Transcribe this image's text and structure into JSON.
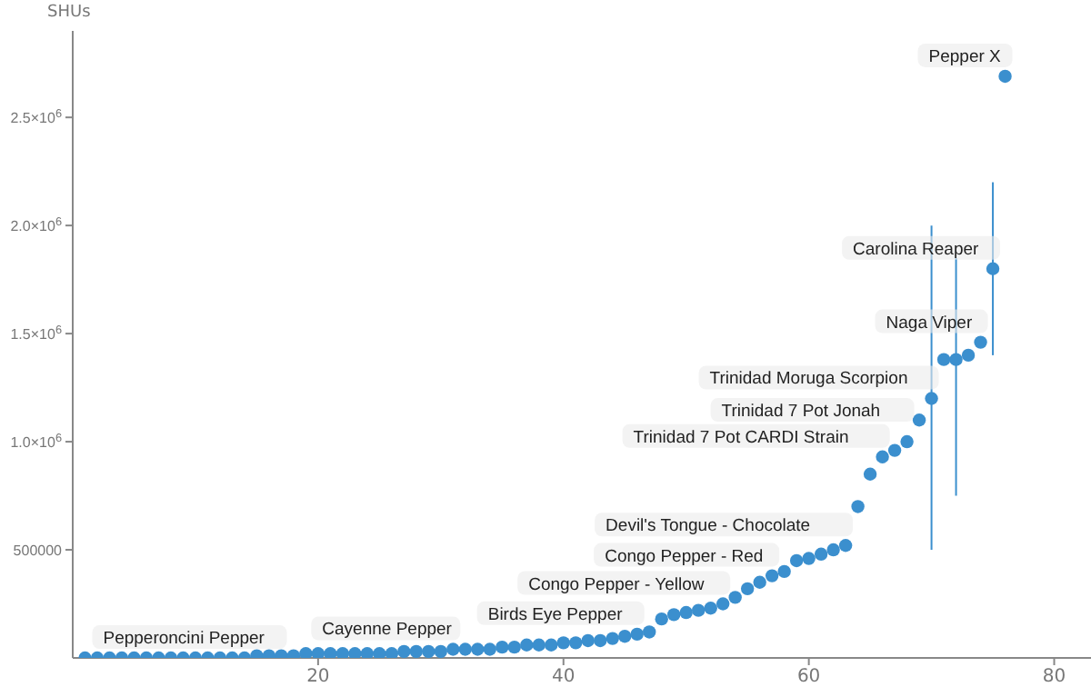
{
  "chart_data": {
    "type": "scatter",
    "ylabel": "SHUs",
    "marker": "circle",
    "x": [
      1,
      2,
      3,
      4,
      5,
      6,
      7,
      8,
      9,
      10,
      11,
      12,
      13,
      14,
      15,
      16,
      17,
      18,
      19,
      20,
      21,
      22,
      23,
      24,
      25,
      26,
      27,
      28,
      29,
      30,
      31,
      32,
      33,
      34,
      35,
      36,
      37,
      38,
      39,
      40,
      41,
      42,
      43,
      44,
      45,
      46,
      47,
      48,
      49,
      50,
      51,
      52,
      53,
      54,
      55,
      56,
      57,
      58,
      59,
      60,
      61,
      62,
      63,
      64,
      65,
      66,
      67,
      68,
      69,
      70,
      71,
      72,
      73,
      74,
      75,
      76
    ],
    "series": [
      {
        "color": "#3b8fce",
        "values": [
          0,
          0,
          0,
          0,
          0,
          0,
          0,
          0,
          0,
          0,
          0,
          0,
          0,
          0,
          10000,
          10000,
          10000,
          10000,
          20000,
          20000,
          20000,
          20000,
          20000,
          20000,
          20000,
          20000,
          30000,
          30000,
          30000,
          30000,
          40000,
          40000,
          40000,
          40000,
          50000,
          50000,
          60000,
          60000,
          60000,
          70000,
          70000,
          80000,
          80000,
          90000,
          100000,
          110000,
          120000,
          180000,
          200000,
          210000,
          220000,
          230000,
          250000,
          280000,
          320000,
          350000,
          380000,
          400000,
          450000,
          460000,
          480000,
          500000,
          520000,
          700000,
          850000,
          930000,
          960000,
          1000000,
          1100000,
          1200000,
          1380000,
          1380000,
          1400000,
          1460000,
          1800000,
          2690000
        ],
        "errors": [
          null,
          null,
          null,
          null,
          null,
          null,
          null,
          null,
          null,
          null,
          null,
          null,
          null,
          null,
          null,
          null,
          null,
          null,
          null,
          null,
          null,
          null,
          null,
          null,
          null,
          null,
          null,
          null,
          null,
          null,
          null,
          null,
          null,
          null,
          null,
          null,
          null,
          null,
          null,
          null,
          null,
          null,
          null,
          null,
          null,
          null,
          null,
          null,
          null,
          null,
          null,
          null,
          null,
          null,
          null,
          null,
          null,
          null,
          null,
          null,
          null,
          null,
          null,
          null,
          null,
          null,
          null,
          null,
          null,
          [
            500000,
            2000000
          ],
          null,
          [
            750000,
            1850000
          ],
          null,
          null,
          [
            1400000,
            2200000
          ],
          null
        ]
      }
    ],
    "xlim": [
      0,
      83
    ],
    "xticks": [
      20,
      40,
      60,
      80
    ],
    "ylim": [
      0,
      2900000
    ],
    "yticks": [
      {
        "value": 500000,
        "label": "500000"
      },
      {
        "value": 1000000,
        "label": "1.0×10$^{6}$"
      },
      {
        "value": 1500000,
        "label": "1.5×10$^{6}$"
      },
      {
        "value": 2000000,
        "label": "2.0×10$^{6}$"
      },
      {
        "value": 2500000,
        "label": "2.5×10$^{6}$"
      }
    ],
    "annotations": [
      {
        "text": "Pepperoncini Pepper",
        "x": 1,
        "y": 0
      },
      {
        "text": "Cayenne Pepper",
        "x": 31,
        "y": 40000
      },
      {
        "text": "Birds Eye Pepper",
        "x": 46,
        "y": 110000
      },
      {
        "text": "Congo Pepper - Yellow",
        "x": 53,
        "y": 250000
      },
      {
        "text": "Congo Pepper - Red",
        "x": 57,
        "y": 380000
      },
      {
        "text": "Devil's Tongue - Chocolate",
        "x": 63,
        "y": 520000
      },
      {
        "text": "Trinidad 7 Pot CARDI Strain",
        "x": 66,
        "y": 930000
      },
      {
        "text": "Trinidad 7 Pot Jonah",
        "x": 68,
        "y": 1000000
      },
      {
        "text": "Trinidad Moruga Scorpion",
        "x": 70,
        "y": 1200000
      },
      {
        "text": "Naga Viper",
        "x": 74,
        "y": 1460000
      },
      {
        "text": "Carolina Reaper",
        "x": 75,
        "y": 1800000
      },
      {
        "text": "Pepper X",
        "x": 76,
        "y": 2690000
      }
    ]
  }
}
